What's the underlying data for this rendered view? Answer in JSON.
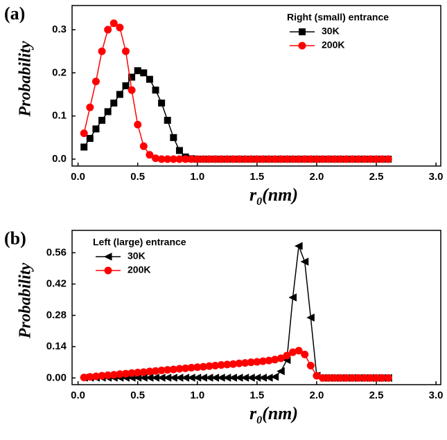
{
  "chart_data": [
    {
      "type": "line",
      "panel": "(a)",
      "y_label": "Probability",
      "x_label": [
        "r",
        "0",
        "(nm)"
      ],
      "legend_title": "Right (small) entrance",
      "legend": "upper right",
      "xlim": [
        -0.05,
        3.04
      ],
      "ylim": [
        -0.016,
        0.356
      ],
      "xticks": [
        {
          "value": 0,
          "label": "0.0"
        },
        0.5,
        {
          "value": 1,
          "label": "1.0"
        },
        1.5,
        {
          "value": 2,
          "label": "2.0"
        },
        2.5,
        {
          "value": 3,
          "label": "3.0"
        }
      ],
      "yticks": [
        {
          "value": 0,
          "label": "0.0"
        },
        0.1,
        0.2,
        0.3
      ],
      "x": [
        0.05,
        0.1,
        0.15,
        0.2,
        0.25,
        0.3,
        0.35,
        0.4,
        0.45,
        0.5,
        0.55,
        0.6,
        0.65,
        0.7,
        0.75,
        0.8,
        0.85,
        0.9,
        0.95,
        1.0,
        1.05,
        1.1,
        1.15,
        1.2,
        1.25,
        1.3,
        1.35,
        1.4,
        1.45,
        1.5,
        1.55,
        1.6,
        1.65,
        1.7,
        1.75,
        1.8,
        1.85,
        1.9,
        1.95,
        2.0,
        2.05,
        2.1,
        2.15,
        2.2,
        2.25,
        2.3,
        2.35,
        2.4,
        2.45,
        2.5,
        2.55,
        2.6
      ],
      "series": [
        {
          "name": "30K",
          "color": "#000000",
          "marker": "square",
          "values": [
            0.028,
            0.048,
            0.07,
            0.09,
            0.11,
            0.13,
            0.15,
            0.17,
            0.19,
            0.205,
            0.2,
            0.185,
            0.16,
            0.13,
            0.09,
            0.05,
            0.02,
            0.005,
            0.001,
            0,
            0,
            0,
            0,
            0,
            0,
            0,
            0,
            0,
            0,
            0,
            0,
            0,
            0,
            0,
            0,
            0,
            0,
            0,
            0,
            0,
            0,
            0,
            0,
            0,
            0,
            0,
            0,
            0,
            0,
            0,
            0,
            0
          ]
        },
        {
          "name": "200K",
          "color": "#ff0000",
          "marker": "circle",
          "values": [
            0.06,
            0.12,
            0.18,
            0.25,
            0.3,
            0.315,
            0.305,
            0.25,
            0.16,
            0.08,
            0.03,
            0.01,
            0.002,
            0,
            0,
            0,
            0,
            0,
            0,
            0,
            0,
            0,
            0,
            0,
            0,
            0,
            0,
            0,
            0,
            0,
            0,
            0,
            0,
            0,
            0,
            0,
            0,
            0,
            0,
            0,
            0,
            0,
            0,
            0,
            0,
            0,
            0,
            0,
            0,
            0,
            0,
            0
          ]
        }
      ]
    },
    {
      "type": "line",
      "panel": "(b)",
      "y_label": "Probability",
      "x_label": [
        "r",
        "0",
        "(nm)"
      ],
      "legend_title": "Left (large) entrance",
      "legend": "upper left",
      "xlim": [
        -0.05,
        3.04
      ],
      "ylim": [
        -0.03,
        0.66
      ],
      "xticks": [
        {
          "value": 0,
          "label": "0.0"
        },
        0.5,
        {
          "value": 1,
          "label": "1.0"
        },
        1.5,
        {
          "value": 2,
          "label": "2.0"
        },
        2.5,
        {
          "value": 3,
          "label": "3.0"
        }
      ],
      "yticks": [
        {
          "value": 0,
          "label": "0.00"
        },
        0.14,
        0.28,
        0.42,
        0.56
      ],
      "x": [
        0.05,
        0.1,
        0.15,
        0.2,
        0.25,
        0.3,
        0.35,
        0.4,
        0.45,
        0.5,
        0.55,
        0.6,
        0.65,
        0.7,
        0.75,
        0.8,
        0.85,
        0.9,
        0.95,
        1.0,
        1.05,
        1.1,
        1.15,
        1.2,
        1.25,
        1.3,
        1.35,
        1.4,
        1.45,
        1.5,
        1.55,
        1.6,
        1.65,
        1.7,
        1.75,
        1.8,
        1.85,
        1.9,
        1.95,
        2.0,
        2.05,
        2.1,
        2.15,
        2.2,
        2.25,
        2.3,
        2.35,
        2.4,
        2.45,
        2.5,
        2.55,
        2.6
      ],
      "series": [
        {
          "name": "30K",
          "color": "#000000",
          "marker": "triangle-left",
          "values": [
            0.001,
            0.001,
            0.001,
            0.001,
            0.001,
            0.001,
            0.001,
            0.001,
            0.001,
            0.001,
            0.001,
            0.001,
            0.001,
            0.001,
            0.001,
            0.001,
            0.001,
            0.001,
            0.001,
            0.001,
            0.001,
            0.001,
            0.001,
            0.001,
            0.001,
            0.001,
            0.001,
            0.001,
            0.001,
            0.001,
            0.001,
            0.001,
            0.005,
            0.03,
            0.08,
            0.36,
            0.59,
            0.52,
            0.27,
            0.01,
            0,
            0,
            0,
            0,
            0,
            0,
            0,
            0,
            0,
            0,
            0,
            0
          ]
        },
        {
          "name": "200K",
          "color": "#ff0000",
          "marker": "circle",
          "values": [
            0.002,
            0.005,
            0.007,
            0.01,
            0.012,
            0.014,
            0.017,
            0.019,
            0.022,
            0.024,
            0.026,
            0.029,
            0.031,
            0.034,
            0.036,
            0.038,
            0.041,
            0.043,
            0.046,
            0.048,
            0.05,
            0.053,
            0.055,
            0.058,
            0.06,
            0.062,
            0.065,
            0.067,
            0.07,
            0.072,
            0.075,
            0.078,
            0.082,
            0.088,
            0.1,
            0.115,
            0.122,
            0.105,
            0.055,
            0.01,
            0,
            0,
            0,
            0,
            0,
            0,
            0,
            0,
            0,
            0,
            0,
            0
          ]
        }
      ]
    }
  ]
}
